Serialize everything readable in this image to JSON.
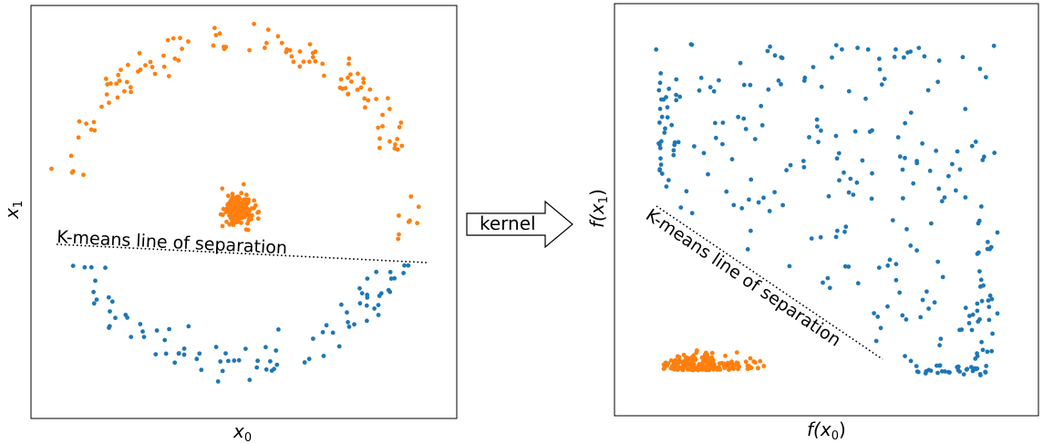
{
  "colors": {
    "orange": "#ff7f0e",
    "blue": "#1f77b4",
    "frame": "#000000"
  },
  "left_panel": {
    "annotation": "K-means line of separation",
    "xlabel_base": "x",
    "xlabel_sub": "0",
    "ylabel_base": "x",
    "ylabel_sub": "1"
  },
  "arrow": {
    "label": "kernel"
  },
  "right_panel": {
    "annotation": "K-means line of separation",
    "xlabel_pre": "f(x",
    "xlabel_sub": "0",
    "xlabel_post": ")",
    "ylabel_pre": "f(x",
    "ylabel_sub": "1",
    "ylabel_post": ")"
  },
  "chart_data": [
    {
      "type": "scatter",
      "series": [
        {
          "color": "#ff7f0e",
          "shape": "outer-arc-and-central-cluster"
        },
        {
          "color": "#1f77b4",
          "shape": "lower-arc"
        }
      ],
      "annotations": [
        "K-means line of separation"
      ],
      "xlabel": "x0",
      "ylabel": "x1",
      "grid": false
    },
    {
      "type": "scatter",
      "series": [
        {
          "color": "#1f77b4",
          "shape": "scattered-upper-and-right"
        },
        {
          "color": "#ff7f0e",
          "shape": "compact-lower-left-cluster"
        }
      ],
      "annotations": [
        "K-means line of separation"
      ],
      "xlabel": "f(x0)",
      "ylabel": "f(x1)",
      "grid": false
    }
  ]
}
